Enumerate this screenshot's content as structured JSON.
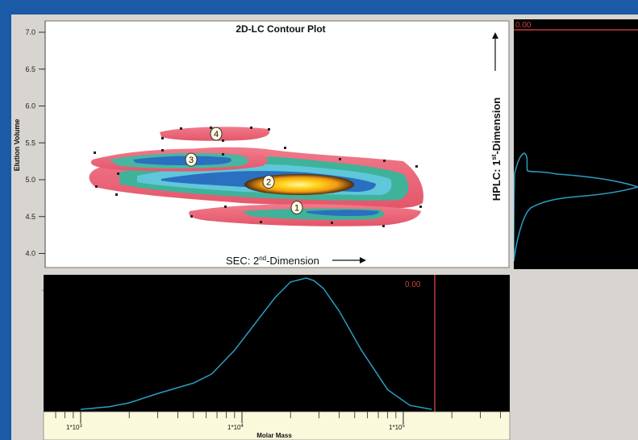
{
  "chart_data": [
    {
      "type": "contour",
      "title": "2D-LC Contour Plot",
      "ylabel": "Elution Volume",
      "xlabel": "SEC: 2nd-Dimension",
      "ylim": [
        3.9,
        7.2
      ],
      "yticks": [
        "7.0",
        "6.5",
        "6.0",
        "5.5",
        "5.0",
        "4.5",
        "4.0"
      ],
      "ytick_values": [
        7.0,
        6.5,
        6.0,
        5.5,
        5.0,
        4.5,
        4.0
      ],
      "peaks": [
        {
          "label": "1",
          "elution": 4.6
        },
        {
          "label": "2",
          "elution": 4.95
        },
        {
          "label": "3",
          "elution": 5.25
        },
        {
          "label": "4",
          "elution": 5.6
        }
      ]
    },
    {
      "type": "line",
      "axis_title": "HPLC: 1st-Dimension",
      "readout": "0.00",
      "colors": {
        "trace": "#2a9ec4",
        "background": "#000000",
        "marker": "#c03a3a"
      }
    },
    {
      "type": "line",
      "xlabel": "Molar Mass",
      "xscale": "log",
      "xticks": [
        "1*10^3",
        "1*10^4",
        "1*10^5"
      ],
      "readout": "0.00",
      "x": [
        1000,
        1500,
        2000,
        3000,
        5000,
        6500,
        9000,
        12000,
        16000,
        20000,
        25000,
        28000,
        32000,
        40000,
        55000,
        80000,
        110000,
        150000
      ],
      "y": [
        0.0,
        0.02,
        0.05,
        0.12,
        0.2,
        0.27,
        0.45,
        0.65,
        0.85,
        0.97,
        1.0,
        0.98,
        0.92,
        0.75,
        0.45,
        0.15,
        0.03,
        0.0
      ],
      "colors": {
        "trace": "#2a9ec4",
        "background": "#000000",
        "marker": "#c03a3a"
      }
    }
  ]
}
